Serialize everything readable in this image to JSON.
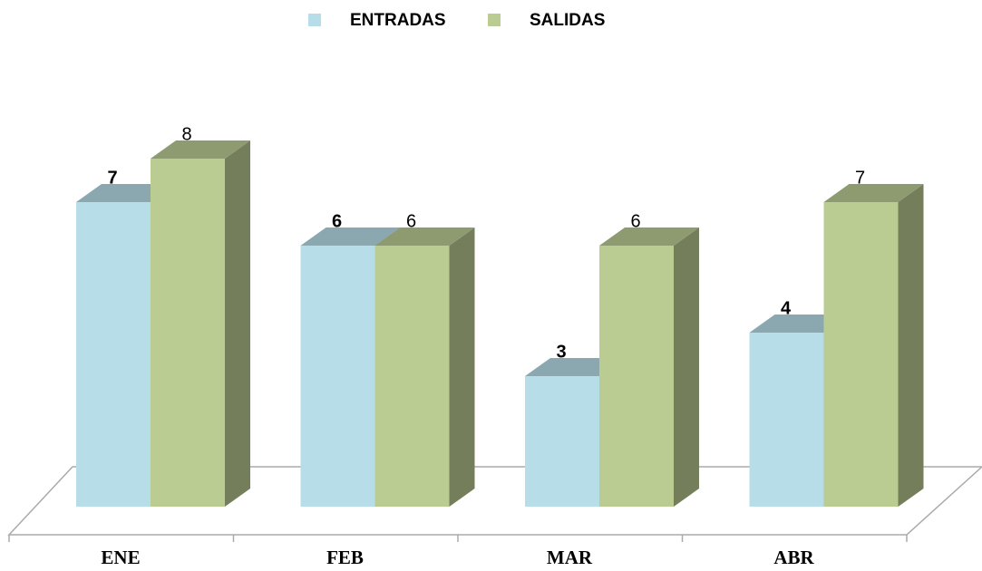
{
  "chart_data": {
    "type": "bar3d",
    "categories": [
      "ENE",
      "FEB",
      "MAR",
      "ABR"
    ],
    "series": [
      {
        "name": "ENTRADAS",
        "color": "#b7dde8",
        "values": [
          7,
          6,
          3,
          4
        ]
      },
      {
        "name": "SALIDAS",
        "color": "#bbcc93",
        "values": [
          8,
          6,
          6,
          7
        ]
      }
    ],
    "legend": "top"
  }
}
